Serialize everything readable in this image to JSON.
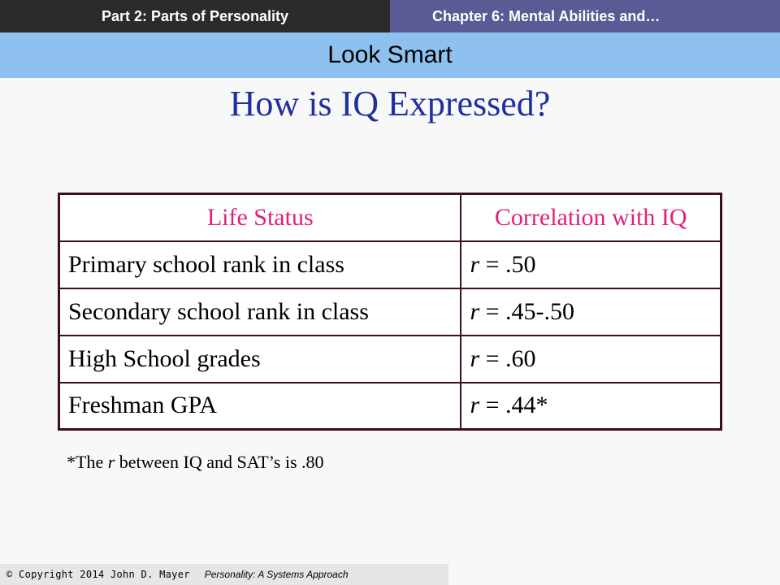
{
  "header": {
    "part_label": "Part 2:  Parts of Personality",
    "chapter_label": "Chapter 6: Mental Abilities and…",
    "section_title": "Look Smart"
  },
  "slide": {
    "title": "How is IQ Expressed?"
  },
  "table": {
    "headers": [
      "Life Status",
      "Correlation  with IQ"
    ],
    "rows": [
      {
        "status": "Primary school rank in class",
        "r_symbol": "r",
        "value": " = .50"
      },
      {
        "status": "Secondary school rank in class",
        "r_symbol": "r",
        "value": " = .45-.50"
      },
      {
        "status": "High School grades",
        "r_symbol": "r",
        "value": " = .60"
      },
      {
        "status": "Freshman GPA",
        "r_symbol": "r",
        "value": " = .44*"
      }
    ]
  },
  "footnote": {
    "prefix": "*The ",
    "r_symbol": "r",
    "suffix": " between IQ and SAT’s is .80"
  },
  "footer": {
    "copyright": "© Copyright 2014  John D. Mayer",
    "book": "Personality: A Systems Approach"
  },
  "colors": {
    "header_dark": "#2b2b2b",
    "header_purple": "#5a5a94",
    "section_band": "#8ec1ef",
    "title_blue": "#1f2fa0",
    "table_header_pink": "#e0207e",
    "table_border": "#3a0d1f"
  }
}
